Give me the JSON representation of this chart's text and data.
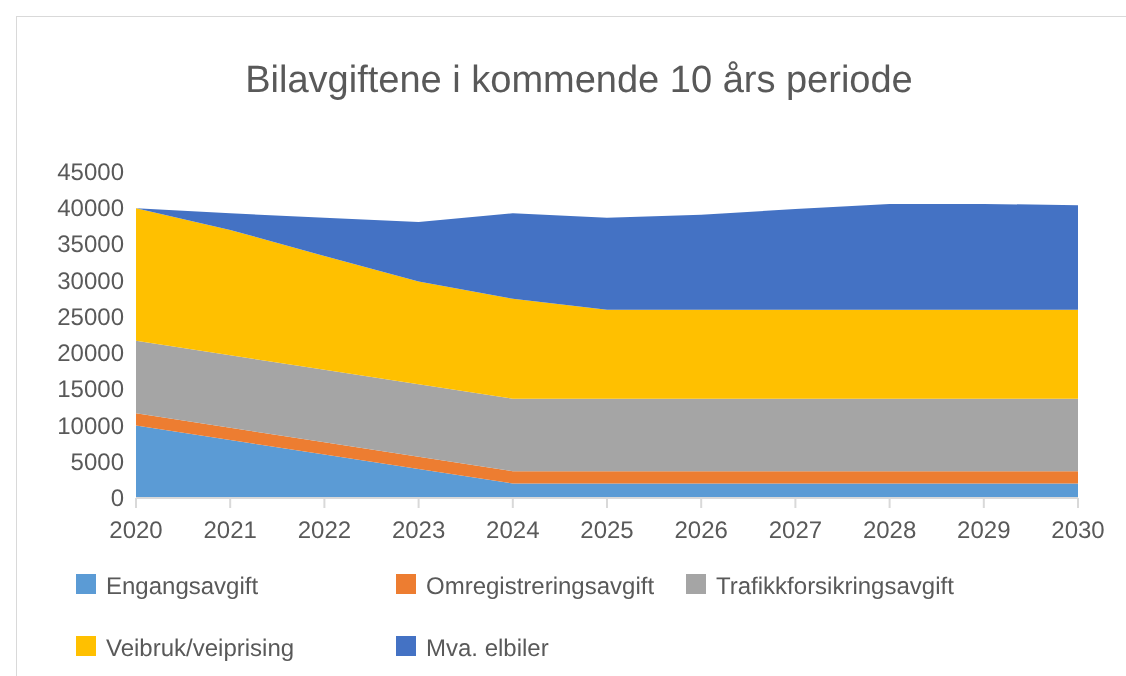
{
  "chart_data": {
    "type": "area",
    "stacked": true,
    "title": "Bilavgiftene i kommende 10 års periode",
    "x": [
      2020,
      2021,
      2022,
      2023,
      2024,
      2025,
      2026,
      2027,
      2028,
      2029,
      2030
    ],
    "xlim": [
      2020,
      2030
    ],
    "xticks": [
      2020,
      2021,
      2022,
      2023,
      2024,
      2025,
      2026,
      2027,
      2028,
      2029,
      2030
    ],
    "ylim": [
      0,
      45000
    ],
    "yticks": [
      0,
      5000,
      10000,
      15000,
      20000,
      25000,
      30000,
      35000,
      40000,
      45000
    ],
    "grid": false,
    "legend": "bottom",
    "series": [
      {
        "name": "Engangsavgift",
        "color": "#5b9bd5",
        "values": [
          10000,
          8000,
          6000,
          4000,
          2000,
          2000,
          2000,
          2000,
          2000,
          2000,
          2000
        ]
      },
      {
        "name": "Omregistreringsavgift",
        "color": "#ed7d31",
        "values": [
          1700,
          1700,
          1700,
          1700,
          1700,
          1700,
          1700,
          1700,
          1700,
          1700,
          1700
        ]
      },
      {
        "name": "Trafikkforsikringsavgift",
        "color": "#a5a5a5",
        "values": [
          10000,
          10000,
          10000,
          10000,
          10000,
          10000,
          10000,
          10000,
          10000,
          10000,
          10000
        ]
      },
      {
        "name": "Veibruk/veiprising",
        "color": "#ffc000",
        "values": [
          18300,
          17300,
          15700,
          14200,
          13800,
          12300,
          12300,
          12300,
          12300,
          12300,
          12300
        ]
      },
      {
        "name": "Mva. elbiler",
        "color": "#4472c4",
        "values": [
          0,
          2300,
          5300,
          8200,
          11800,
          12700,
          13100,
          13900,
          14600,
          14600,
          14400
        ]
      }
    ]
  }
}
